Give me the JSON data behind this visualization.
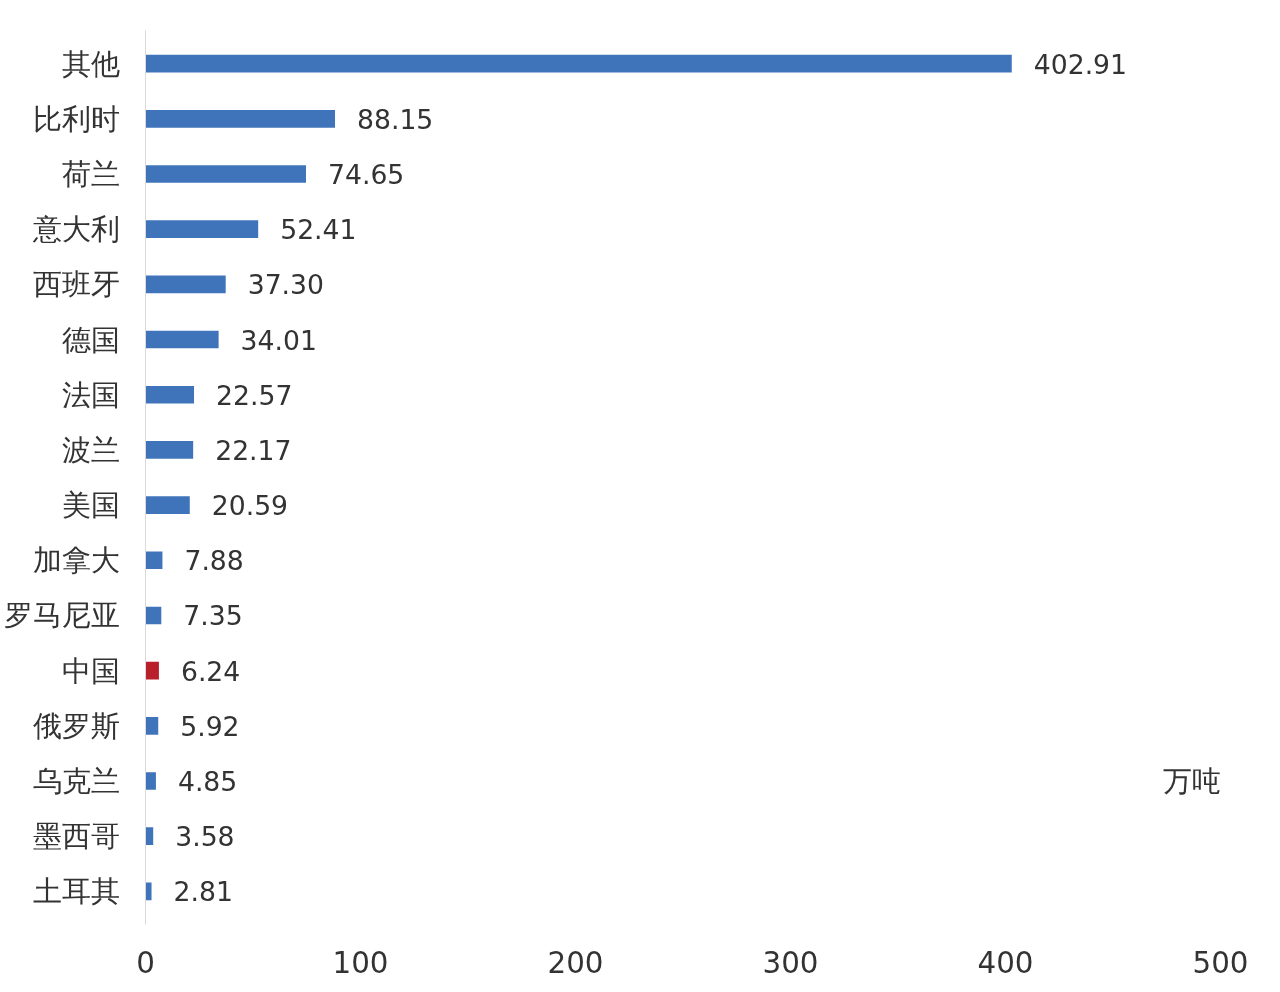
{
  "chart_data": {
    "type": "bar",
    "orientation": "horizontal",
    "categories": [
      "其他",
      "比利时",
      "荷兰",
      "意大利",
      "西班牙",
      "德国",
      "法国",
      "波兰",
      "美国",
      "加拿大",
      "罗马尼亚",
      "中国",
      "俄罗斯",
      "乌克兰",
      "墨西哥",
      "土耳其"
    ],
    "values": [
      402.91,
      88.15,
      74.65,
      52.41,
      37.3,
      34.01,
      22.57,
      22.17,
      20.59,
      7.88,
      7.35,
      6.24,
      5.92,
      4.85,
      3.58,
      2.81
    ],
    "value_labels": [
      "402.91",
      "88.15",
      "74.65",
      "52.41",
      "37.30",
      "34.01",
      "22.57",
      "22.17",
      "20.59",
      "7.88",
      "7.35",
      "6.24",
      "5.92",
      "4.85",
      "3.58",
      "2.81"
    ],
    "colors": [
      "#3f74bb",
      "#3f74bb",
      "#3f74bb",
      "#3f74bb",
      "#3f74bb",
      "#3f74bb",
      "#3f74bb",
      "#3f74bb",
      "#3f74bb",
      "#3f74bb",
      "#3f74bb",
      "#b8202c",
      "#3f74bb",
      "#3f74bb",
      "#3f74bb",
      "#3f74bb"
    ],
    "xlim": [
      0,
      500
    ],
    "xticks": [
      0,
      100,
      200,
      300,
      400,
      500
    ],
    "annotations": [
      "万吨"
    ]
  }
}
